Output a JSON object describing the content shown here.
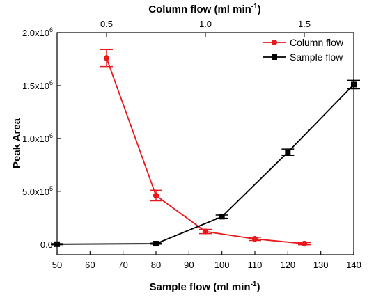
{
  "chart_data": {
    "type": "line",
    "title": "",
    "xlabel_bottom": {
      "text": "Sample flow (ml min",
      "sup": "-1",
      "close": ")"
    },
    "xlabel_top": {
      "text": "Column flow (ml min",
      "sup": "-1",
      "close": ")"
    },
    "ylabel": "Peak Area",
    "x_bottom": {
      "lim": [
        50,
        140
      ],
      "ticks": [
        50,
        60,
        70,
        80,
        90,
        100,
        110,
        120,
        130,
        140
      ],
      "tick_labels": [
        "50",
        "60",
        "70",
        "80",
        "90",
        "100",
        "110",
        "120",
        "130",
        "140"
      ]
    },
    "x_top": {
      "lim": [
        0.25,
        1.75
      ],
      "ticks": [
        0.5,
        1.0,
        1.5
      ],
      "tick_labels": [
        "0.5",
        "1.0",
        "1.5"
      ]
    },
    "y": {
      "lim": [
        -100000,
        2000000
      ],
      "ticks": [
        0,
        500000,
        1000000,
        1500000,
        2000000
      ],
      "tick_labels": [
        {
          "base": "0.0",
          "exp": ""
        },
        {
          "base": "5.0x10",
          "exp": "5"
        },
        {
          "base": "1.0x10",
          "exp": "6"
        },
        {
          "base": "1.5x10",
          "exp": "6"
        },
        {
          "base": "2.0x10",
          "exp": "6"
        }
      ]
    },
    "legend_position": "top-right",
    "grid": false,
    "series": [
      {
        "name": "Column flow",
        "axis": "top",
        "color": "#e8191c",
        "marker": "circle",
        "x": [
          0.5,
          0.75,
          1.0,
          1.25,
          1.5
        ],
        "y": [
          1760000,
          460000,
          120000,
          50000,
          5000
        ],
        "err": [
          80000,
          50000,
          20000,
          15000,
          10000
        ]
      },
      {
        "name": "Sample flow",
        "axis": "bottom",
        "color": "#000000",
        "marker": "square",
        "x": [
          50,
          80,
          100,
          120,
          140
        ],
        "y": [
          0,
          5000,
          260000,
          870000,
          1510000
        ],
        "err": [
          5000,
          5000,
          15000,
          30000,
          40000
        ]
      }
    ]
  }
}
